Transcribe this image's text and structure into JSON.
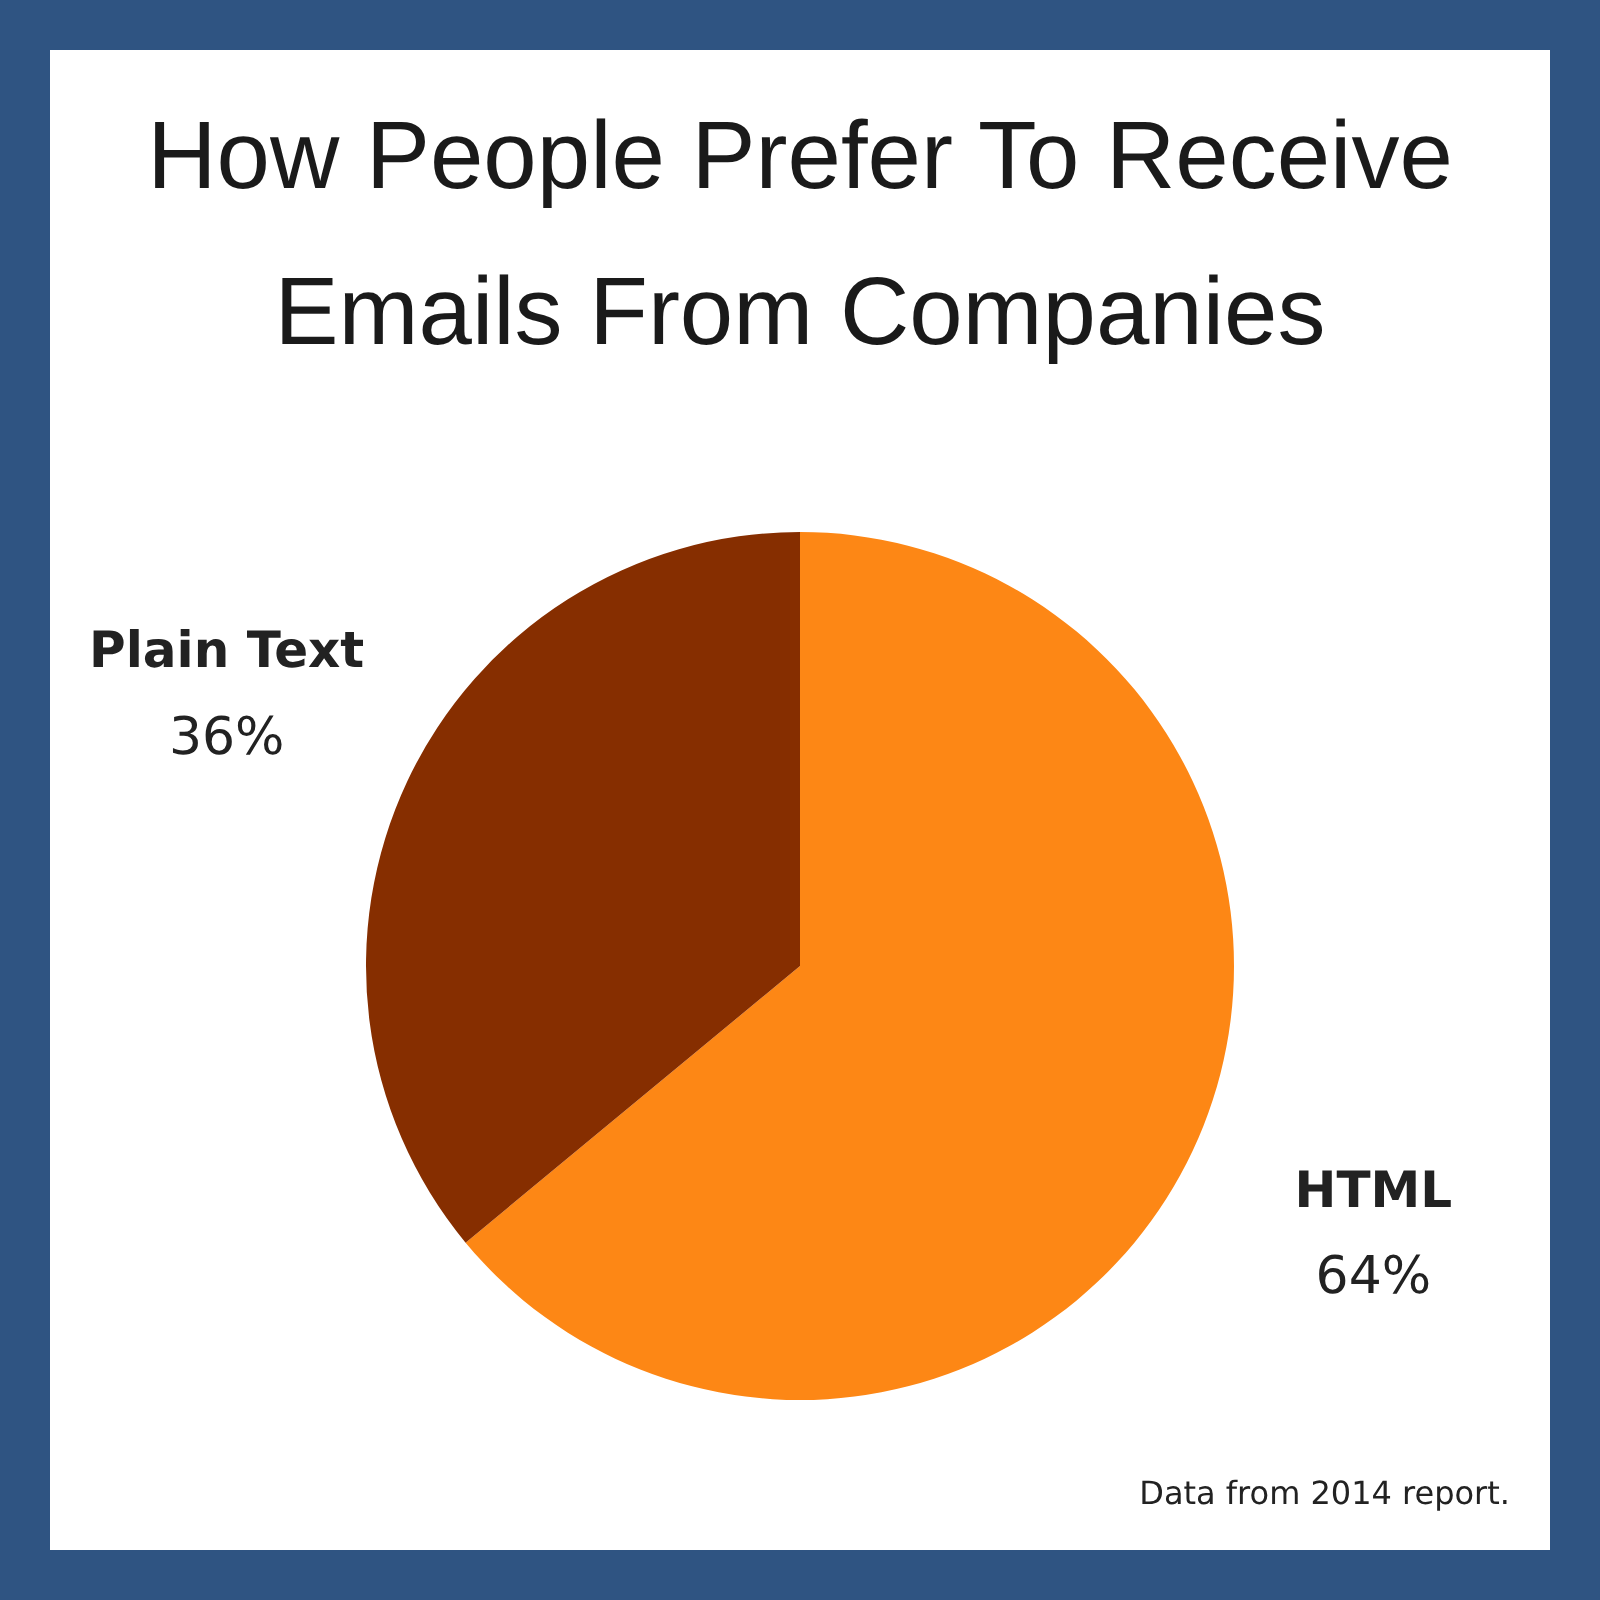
{
  "chart_data": {
    "type": "pie",
    "title": "How People Prefer To Receive Emails From Companies",
    "categories": [
      "HTML",
      "Plain Text"
    ],
    "values": [
      64,
      36
    ],
    "colors": [
      "#fd8715",
      "#862e00"
    ],
    "value_labels": [
      "64%",
      "36%"
    ],
    "legend": false,
    "annotations": [
      "Data from 2014 report."
    ]
  }
}
